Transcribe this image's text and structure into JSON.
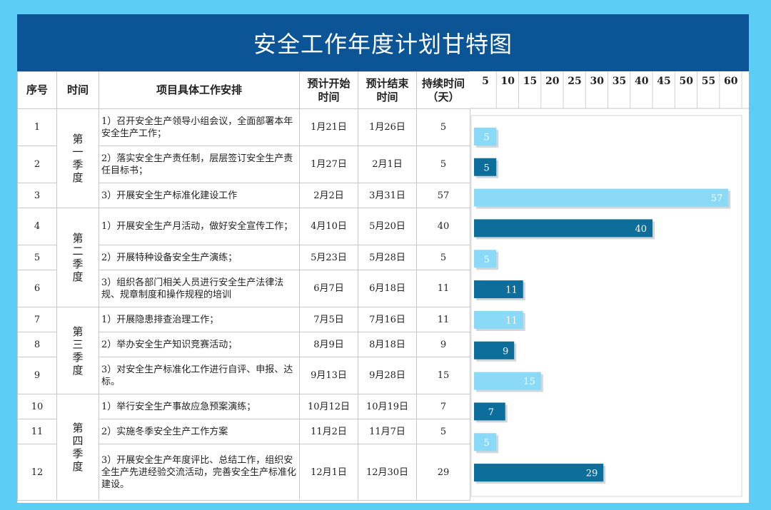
{
  "title": "安全工作年度计划甘特图",
  "headers": {
    "index": "序号",
    "time": "时间",
    "task": "项目具体工作安排",
    "start": [
      "预计开始",
      "时间"
    ],
    "end": [
      "预计结束",
      "时间"
    ],
    "duration": [
      "持续时间",
      "（天）"
    ]
  },
  "quarters": [
    {
      "label": [
        "第 一",
        "季 度"
      ],
      "rows": 3
    },
    {
      "label": [
        "第 二",
        "季 度"
      ],
      "rows": 3
    },
    {
      "label": [
        "第 三",
        "季 度"
      ],
      "rows": 3
    },
    {
      "label": [
        "第 四",
        "季 度"
      ],
      "rows": 3
    }
  ],
  "tasks": [
    {
      "no": "1",
      "text": "1）召开安全生产领导小组会议，全面部署本年安全生产工作；",
      "start": "1月21日",
      "end": "1月26日",
      "days": "5"
    },
    {
      "no": "2",
      "text": "2）落实安全生产责任制，层层签订安全生产责任目标书；",
      "start": "1月27日",
      "end": "2月1日",
      "days": "5"
    },
    {
      "no": "3",
      "text": "3）开展安全生产标准化建设工作",
      "start": "2月2日",
      "end": "3月31日",
      "days": "57"
    },
    {
      "no": "4",
      "text": "1）开展安全生产月活动，做好安全宣传工作；",
      "start": "4月10日",
      "end": "5月20日",
      "days": "40"
    },
    {
      "no": "5",
      "text": "2）开展特种设备安全生产演练；",
      "start": "5月23日",
      "end": "5月28日",
      "days": "5"
    },
    {
      "no": "6",
      "text": "3）组织各部门相关人员进行安全生产法律法规、规章制度和操作规程的培训",
      "start": "6月7日",
      "end": "6月18日",
      "days": "11"
    },
    {
      "no": "7",
      "text": "1）开展隐患排查治理工作；",
      "start": "7月5日",
      "end": "7月16日",
      "days": "11"
    },
    {
      "no": "8",
      "text": "2）举办安全生产知识竞赛活动；",
      "start": "8月9日",
      "end": "8月18日",
      "days": "9"
    },
    {
      "no": "9",
      "text": "3）对安全生产标准化工作进行自评、申报、达标。",
      "start": "9月13日",
      "end": "9月28日",
      "days": "15"
    },
    {
      "no": "10",
      "text": "1）举行安全生产事故应急预案演练；",
      "start": "10月12日",
      "end": "10月19日",
      "days": "7"
    },
    {
      "no": "11",
      "text": "2）实施冬季安全生产工作方案",
      "start": "11月2日",
      "end": "11月7日",
      "days": "5"
    },
    {
      "no": "12",
      "text": "3）开展安全生产年度评比、总结工作，组织安全生产先进经验交流活动，完善安全生产标准化建设。",
      "start": "12月1日",
      "end": "12月30日",
      "days": "29"
    }
  ],
  "colors": {
    "frame": "#5ccdf5",
    "title_bg": "#0b5596",
    "bar_light": "#89d9f7",
    "bar_dark": "#0d6e9c"
  },
  "chart_data": {
    "type": "bar",
    "orientation": "horizontal",
    "categories": [
      "1",
      "2",
      "3",
      "4",
      "5",
      "6",
      "7",
      "8",
      "9",
      "10",
      "11",
      "12"
    ],
    "values": [
      5,
      5,
      57,
      40,
      5,
      11,
      11,
      9,
      15,
      7,
      5,
      29
    ],
    "bar_colors": [
      "light",
      "dark",
      "light",
      "dark",
      "light",
      "dark",
      "light",
      "dark",
      "light",
      "dark",
      "light",
      "dark"
    ],
    "x_ticks": [
      5,
      10,
      15,
      20,
      25,
      30,
      35,
      40,
      45,
      50,
      55,
      60
    ],
    "xlim": [
      0,
      60
    ],
    "title": "",
    "xlabel": "",
    "ylabel": "",
    "grid": true
  }
}
